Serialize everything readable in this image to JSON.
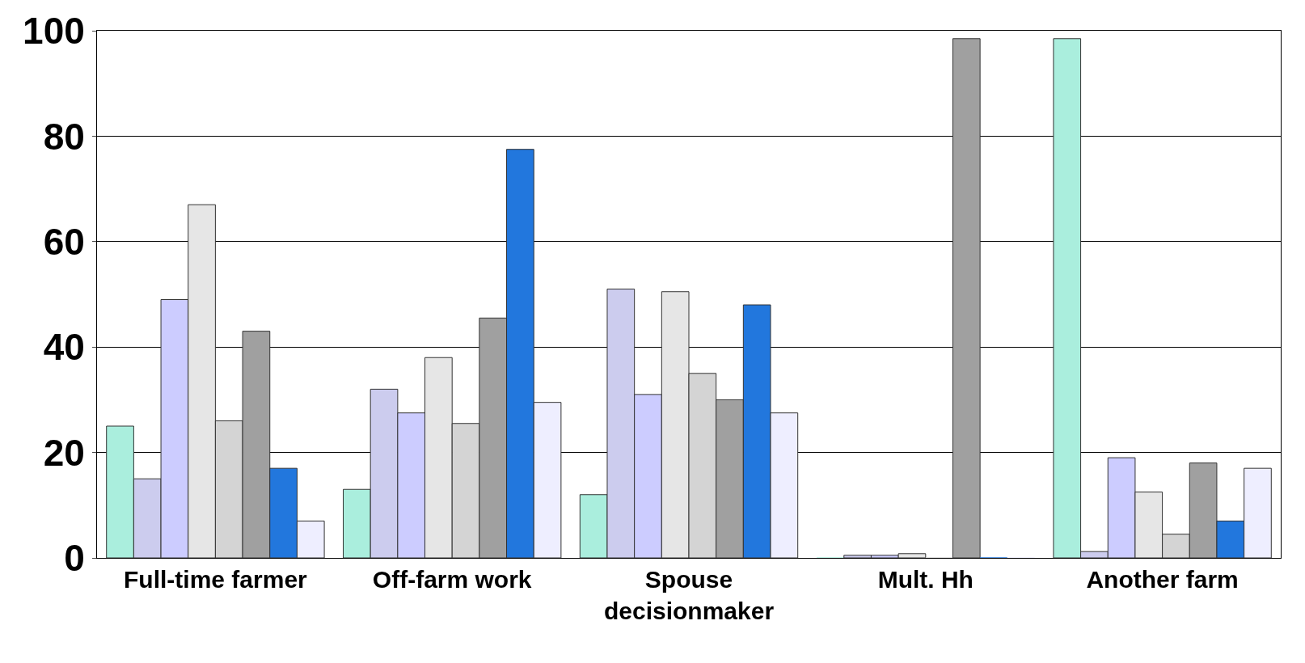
{
  "chart_data": {
    "type": "bar",
    "categories": [
      "Full-time farmer",
      "Off-farm work",
      "Spouse decisionmaker",
      "Mult. Hh",
      "Another farm"
    ],
    "series": [
      {
        "color": "#aaeedd",
        "values": [
          25,
          13,
          12,
          0,
          98.5
        ]
      },
      {
        "color": "#ccccee",
        "values": [
          15,
          32,
          51,
          0.5,
          1.2
        ]
      },
      {
        "color": "#ccccff",
        "values": [
          49,
          27.5,
          31,
          0.5,
          19
        ]
      },
      {
        "color": "#e6e6e6",
        "values": [
          67,
          38,
          50.5,
          0.8,
          12.5
        ]
      },
      {
        "color": "#d4d4d4",
        "values": [
          26,
          25.5,
          35,
          0,
          4.5
        ]
      },
      {
        "color": "#a0a0a0",
        "values": [
          43,
          45.5,
          30,
          98.5,
          18
        ]
      },
      {
        "color": "#2277dd",
        "values": [
          17,
          77.5,
          48,
          0,
          7
        ]
      },
      {
        "color": "#eeeeff",
        "values": [
          7,
          29.5,
          27.5,
          0,
          17
        ]
      }
    ],
    "ylim": [
      0,
      100
    ],
    "yticks": [
      0,
      20,
      40,
      60,
      80,
      100
    ],
    "grid": "y",
    "legend": false
  }
}
